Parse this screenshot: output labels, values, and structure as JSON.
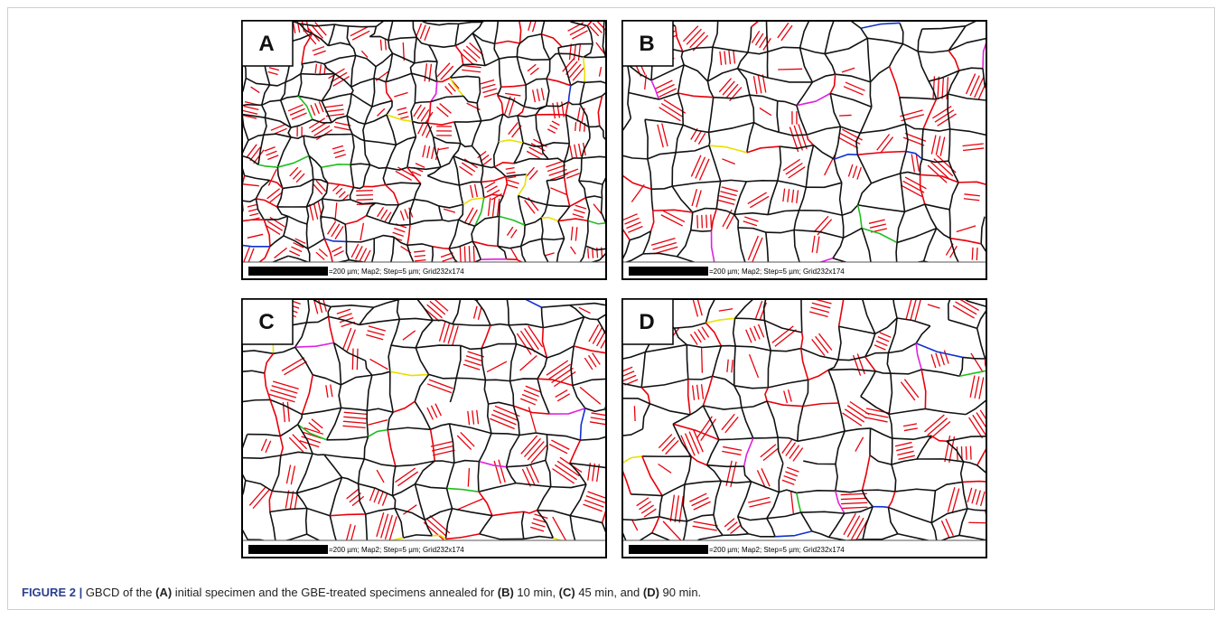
{
  "panels": [
    {
      "label": "A",
      "scale_text": "=200 µm; Map2; Step=5 µm; Grid232x174"
    },
    {
      "label": "B",
      "scale_text": "=200 µm; Map2; Step=5 µm; Grid232x174"
    },
    {
      "label": "C",
      "scale_text": "=200 µm; Map2; Step=5 µm; Grid232x174"
    },
    {
      "label": "D",
      "scale_text": "=200 µm; Map2; Step=5 µm; Grid232x174"
    }
  ],
  "caption": [
    {
      "text": "FIGURE 2 |",
      "bold": true
    },
    {
      "text": " GBCD of the ",
      "bold": false
    },
    {
      "text": "(A)",
      "bold": true
    },
    {
      "text": " initial specimen and the GBE-treated specimens annealed for ",
      "bold": false
    },
    {
      "text": "(B)",
      "bold": true
    },
    {
      "text": " 10 min, ",
      "bold": false
    },
    {
      "text": "(C)",
      "bold": true
    },
    {
      "text": " 45 min, and ",
      "bold": false
    },
    {
      "text": "(D)",
      "bold": true
    },
    {
      "text": " 90 min.",
      "bold": false
    }
  ]
}
